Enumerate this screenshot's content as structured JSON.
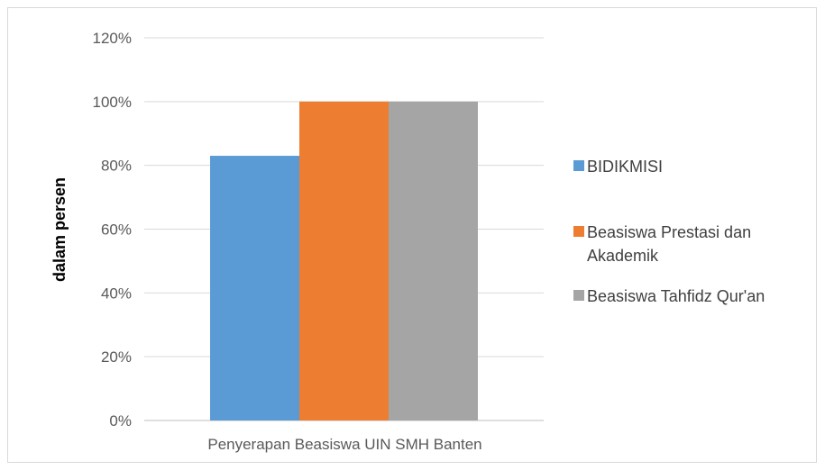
{
  "chart_data": {
    "type": "bar",
    "categories": [
      "Penyerapan Beasiswa UIN SMH Banten"
    ],
    "series": [
      {
        "name": "BIDIKMISI",
        "values": [
          0.83
        ],
        "color": "#5b9bd5"
      },
      {
        "name": "Beasiswa Prestasi dan Akademik",
        "values": [
          1.0
        ],
        "color": "#ed7d31"
      },
      {
        "name": "Beasiswa Tahfidz Qur'an",
        "values": [
          1.0
        ],
        "color": "#a5a5a5"
      }
    ],
    "title": "",
    "xlabel": "",
    "ylabel": "dalam persen",
    "ylim": [
      0,
      1.2
    ],
    "yticks": [
      "0%",
      "20%",
      "40%",
      "60%",
      "80%",
      "100%",
      "120%"
    ],
    "grid": true,
    "legend_position": "right"
  }
}
